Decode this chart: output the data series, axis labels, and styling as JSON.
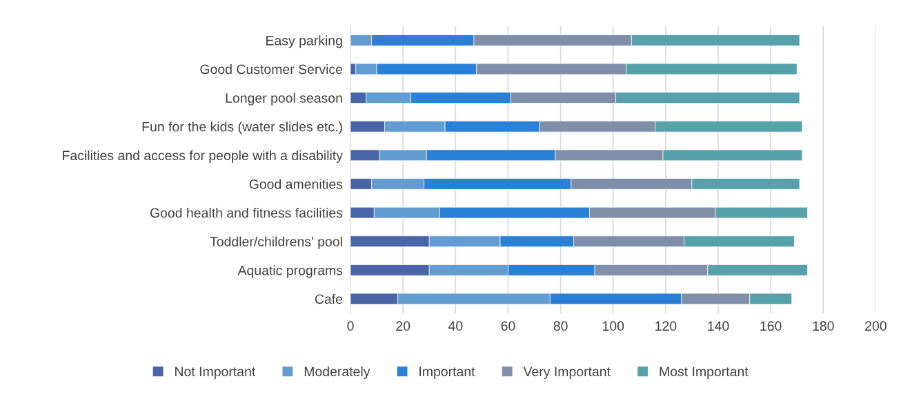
{
  "chart_data": {
    "type": "bar",
    "orientation": "horizontal",
    "stacked": true,
    "categories": [
      "Easy parking",
      "Good Customer Service",
      "Longer pool season",
      "Fun for the kids (water slides etc.)",
      "Facilities and access for people with a disability",
      "Good amenities",
      "Good health and fitness facilities",
      "Toddler/childrens' pool",
      "Aquatic programs",
      "Cafe"
    ],
    "series": [
      {
        "name": "Not Important",
        "color": "#4a64a8",
        "values": [
          0,
          2,
          6,
          13,
          11,
          8,
          9,
          30,
          30,
          18
        ]
      },
      {
        "name": "Moderately",
        "color": "#629dd1",
        "values": [
          8,
          8,
          17,
          23,
          18,
          20,
          25,
          27,
          30,
          58
        ]
      },
      {
        "name": "Important",
        "color": "#2a7fd6",
        "values": [
          39,
          38,
          38,
          36,
          49,
          56,
          57,
          28,
          33,
          50
        ]
      },
      {
        "name": "Very Important",
        "color": "#7f8fa9",
        "values": [
          60,
          57,
          40,
          44,
          41,
          46,
          48,
          42,
          43,
          26
        ]
      },
      {
        "name": "Most Important",
        "color": "#57a1ab",
        "values": [
          64,
          65,
          70,
          56,
          53,
          41,
          35,
          42,
          38,
          16
        ]
      }
    ],
    "xlim": [
      0,
      200
    ],
    "xticks": [
      0,
      20,
      40,
      60,
      80,
      100,
      120,
      140,
      160,
      180,
      200
    ],
    "grid": "x",
    "legend": "bottom"
  }
}
